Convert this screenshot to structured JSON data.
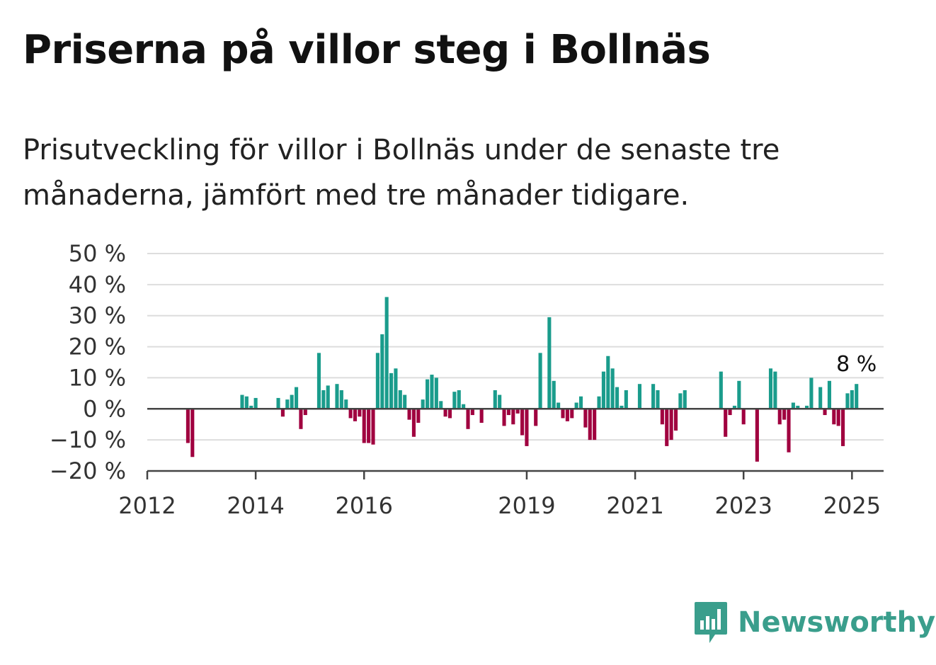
{
  "header": {
    "title": "Priserna på villor steg i Bollnäs",
    "subtitle": "Prisutveckling för villor i Bollnäs under de senaste tre månaderna, jämfört med tre månader tidigare."
  },
  "brand": {
    "name": "Newsworthy",
    "color": "#3a9e8c",
    "icon": "newsworthy-logo-icon"
  },
  "chart_data": {
    "type": "bar",
    "title": "",
    "xlabel": "",
    "ylabel": "",
    "ylim": [
      -20,
      50
    ],
    "xlim": [
      "2012-01",
      "2025-08"
    ],
    "y_ticks": [
      50,
      40,
      30,
      20,
      10,
      0,
      -10,
      -20
    ],
    "y_tick_labels": [
      "50 %",
      "40 %",
      "30 %",
      "20 %",
      "10 %",
      "0 %",
      "−10 %",
      "−20 %"
    ],
    "x_ticks": [
      "2012-01",
      "2014-01",
      "2016-01",
      "2019-01",
      "2021-01",
      "2023-01",
      "2025-01"
    ],
    "x_tick_labels": [
      "2012",
      "2014",
      "2016",
      "2019",
      "2021",
      "2023",
      "2025"
    ],
    "grid": true,
    "colors": {
      "positive": "#1a9c8c",
      "negative": "#a0003f",
      "grid": "#dddddd",
      "axis": "#444444"
    },
    "annotation": {
      "text": "8 %",
      "x": "2025-02"
    },
    "series": [
      {
        "points": [
          [
            "2012-10",
            -11
          ],
          [
            "2012-11",
            -15.5
          ],
          [
            "2013-10",
            4.5
          ],
          [
            "2013-11",
            4
          ],
          [
            "2013-12",
            1
          ],
          [
            "2014-01",
            3.5
          ],
          [
            "2014-06",
            3.5
          ],
          [
            "2014-07",
            -2.5
          ],
          [
            "2014-08",
            3
          ],
          [
            "2014-09",
            4.5
          ],
          [
            "2014-10",
            7
          ],
          [
            "2014-11",
            -6.5
          ],
          [
            "2014-12",
            -2
          ],
          [
            "2015-03",
            18
          ],
          [
            "2015-04",
            6
          ],
          [
            "2015-05",
            7.5
          ],
          [
            "2015-07",
            8
          ],
          [
            "2015-08",
            6
          ],
          [
            "2015-09",
            3
          ],
          [
            "2015-10",
            -3
          ],
          [
            "2015-11",
            -4
          ],
          [
            "2015-12",
            -2.5
          ],
          [
            "2016-01",
            -11
          ],
          [
            "2016-02",
            -11
          ],
          [
            "2016-03",
            -11.5
          ],
          [
            "2016-04",
            18
          ],
          [
            "2016-05",
            24
          ],
          [
            "2016-06",
            36
          ],
          [
            "2016-07",
            11.5
          ],
          [
            "2016-08",
            13
          ],
          [
            "2016-09",
            6
          ],
          [
            "2016-10",
            4.5
          ],
          [
            "2016-11",
            -3.5
          ],
          [
            "2016-12",
            -9
          ],
          [
            "2017-01",
            -4.5
          ],
          [
            "2017-02",
            3
          ],
          [
            "2017-03",
            9.5
          ],
          [
            "2017-04",
            11
          ],
          [
            "2017-05",
            10
          ],
          [
            "2017-06",
            2.5
          ],
          [
            "2017-07",
            -2.5
          ],
          [
            "2017-08",
            -3
          ],
          [
            "2017-09",
            5.5
          ],
          [
            "2017-10",
            6
          ],
          [
            "2017-11",
            1.5
          ],
          [
            "2017-12",
            -6.5
          ],
          [
            "2018-01",
            -2
          ],
          [
            "2018-03",
            -4.5
          ],
          [
            "2018-06",
            6
          ],
          [
            "2018-07",
            4.5
          ],
          [
            "2018-08",
            -5.5
          ],
          [
            "2018-09",
            -2
          ],
          [
            "2018-10",
            -5
          ],
          [
            "2018-11",
            -1.5
          ],
          [
            "2018-12",
            -8.5
          ],
          [
            "2019-01",
            -12
          ],
          [
            "2019-03",
            -5.5
          ],
          [
            "2019-04",
            18
          ],
          [
            "2019-06",
            29.5
          ],
          [
            "2019-07",
            9
          ],
          [
            "2019-08",
            2
          ],
          [
            "2019-09",
            -3
          ],
          [
            "2019-10",
            -4
          ],
          [
            "2019-11",
            -3
          ],
          [
            "2019-12",
            2
          ],
          [
            "2020-01",
            4
          ],
          [
            "2020-02",
            -6
          ],
          [
            "2020-03",
            -10
          ],
          [
            "2020-04",
            -10
          ],
          [
            "2020-05",
            4
          ],
          [
            "2020-06",
            12
          ],
          [
            "2020-07",
            17
          ],
          [
            "2020-08",
            13
          ],
          [
            "2020-09",
            7
          ],
          [
            "2020-10",
            1
          ],
          [
            "2020-11",
            6
          ],
          [
            "2021-02",
            8
          ],
          [
            "2021-05",
            8
          ],
          [
            "2021-06",
            6
          ],
          [
            "2021-07",
            -5
          ],
          [
            "2021-08",
            -12
          ],
          [
            "2021-09",
            -10
          ],
          [
            "2021-10",
            -7
          ],
          [
            "2021-11",
            5
          ],
          [
            "2021-12",
            6
          ],
          [
            "2022-08",
            12
          ],
          [
            "2022-09",
            -9
          ],
          [
            "2022-10",
            -2
          ],
          [
            "2022-11",
            1
          ],
          [
            "2022-12",
            9
          ],
          [
            "2023-01",
            -5
          ],
          [
            "2023-04",
            -17
          ],
          [
            "2023-07",
            13
          ],
          [
            "2023-08",
            12
          ],
          [
            "2023-09",
            -5
          ],
          [
            "2023-10",
            -3.5
          ],
          [
            "2023-11",
            -14
          ],
          [
            "2023-12",
            2
          ],
          [
            "2024-01",
            1
          ],
          [
            "2024-03",
            1
          ],
          [
            "2024-04",
            10
          ],
          [
            "2024-06",
            7
          ],
          [
            "2024-07",
            -2
          ],
          [
            "2024-08",
            9
          ],
          [
            "2024-09",
            -5
          ],
          [
            "2024-10",
            -5.5
          ],
          [
            "2024-11",
            -12
          ],
          [
            "2024-12",
            5
          ],
          [
            "2025-01",
            6
          ],
          [
            "2025-02",
            8
          ]
        ]
      }
    ]
  }
}
